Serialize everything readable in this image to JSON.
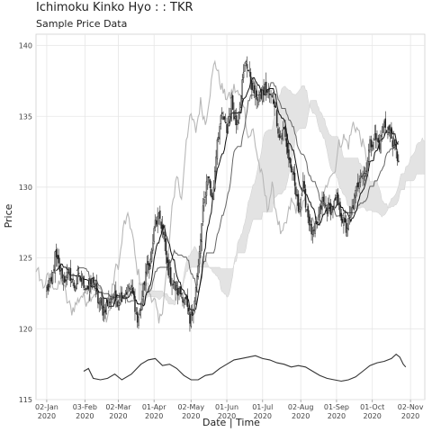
{
  "chart_data": {
    "type": "line",
    "title": "Ichimoku Kinko Hyo : : TKR",
    "subtitle": "Sample Price Data",
    "xlabel": "Date | Time",
    "ylabel": "Price",
    "ylim": [
      115,
      140.8
    ],
    "yticks": [
      115,
      120,
      125,
      130,
      135,
      140
    ],
    "xlim": [
      -8,
      318
    ],
    "xticks": [
      {
        "day": 1,
        "line1": "02-Jan",
        "line2": "2020"
      },
      {
        "day": 33,
        "line1": "03-Feb",
        "line2": "2020"
      },
      {
        "day": 61,
        "line1": "02-Mar",
        "line2": "2020"
      },
      {
        "day": 91,
        "line1": "01-Apr",
        "line2": "2020"
      },
      {
        "day": 122,
        "line1": "02-May",
        "line2": "2020"
      },
      {
        "day": 152,
        "line1": "01-Jun",
        "line2": "2020"
      },
      {
        "day": 182,
        "line1": "01-Jul",
        "line2": "2020"
      },
      {
        "day": 214,
        "line1": "02-Aug",
        "line2": "2020"
      },
      {
        "day": 244,
        "line1": "01-Sep",
        "line2": "2020"
      },
      {
        "day": 274,
        "line1": "01-Oct",
        "line2": "2020"
      },
      {
        "day": 306,
        "line1": "02-Nov",
        "line2": "2020"
      }
    ],
    "grid": true,
    "close_anchors": [
      [
        1,
        122.8
      ],
      [
        5,
        123.2
      ],
      [
        8,
        125.1
      ],
      [
        12,
        124.2
      ],
      [
        16,
        123.5
      ],
      [
        20,
        124.0
      ],
      [
        24,
        123.0
      ],
      [
        28,
        123.6
      ],
      [
        32,
        123.2
      ],
      [
        36,
        122.8
      ],
      [
        40,
        123.5
      ],
      [
        44,
        122.0
      ],
      [
        48,
        121.3
      ],
      [
        52,
        121.8
      ],
      [
        56,
        122.4
      ],
      [
        60,
        122.0
      ],
      [
        63,
        122.3
      ],
      [
        67,
        122.5
      ],
      [
        70,
        123.0
      ],
      [
        74,
        122.2
      ],
      [
        77,
        120.5
      ],
      [
        80,
        121.5
      ],
      [
        84,
        124.0
      ],
      [
        88,
        124.8
      ],
      [
        92,
        127.5
      ],
      [
        96,
        127.8
      ],
      [
        99,
        126.5
      ],
      [
        102,
        124.5
      ],
      [
        105,
        123.5
      ],
      [
        108,
        123.0
      ],
      [
        111,
        122.6
      ],
      [
        114,
        122.5
      ],
      [
        118,
        121.8
      ],
      [
        121,
        120.3
      ],
      [
        124,
        121.5
      ],
      [
        128,
        124.3
      ],
      [
        132,
        128.3
      ],
      [
        136,
        131.0
      ],
      [
        140,
        129.0
      ],
      [
        144,
        133.5
      ],
      [
        148,
        135.0
      ],
      [
        152,
        134.0
      ],
      [
        156,
        136.0
      ],
      [
        160,
        134.5
      ],
      [
        164,
        136.8
      ],
      [
        168,
        139.0
      ],
      [
        172,
        137.5
      ],
      [
        176,
        136.5
      ],
      [
        180,
        136.3
      ],
      [
        184,
        137.0
      ],
      [
        188,
        136.5
      ],
      [
        192,
        136.0
      ],
      [
        196,
        133.5
      ],
      [
        200,
        134.0
      ],
      [
        204,
        132.0
      ],
      [
        208,
        130.5
      ],
      [
        212,
        128.5
      ],
      [
        216,
        130.0
      ],
      [
        220,
        128.0
      ],
      [
        224,
        126.5
      ],
      [
        228,
        127.5
      ],
      [
        232,
        129.0
      ],
      [
        236,
        128.5
      ],
      [
        240,
        128.5
      ],
      [
        244,
        129.0
      ],
      [
        248,
        128.0
      ],
      [
        252,
        127.0
      ],
      [
        256,
        128.0
      ],
      [
        260,
        129.5
      ],
      [
        264,
        131.0
      ],
      [
        268,
        131.0
      ],
      [
        272,
        133.0
      ],
      [
        276,
        133.5
      ],
      [
        280,
        133.0
      ],
      [
        284,
        134.5
      ],
      [
        288,
        134.0
      ],
      [
        292,
        133.0
      ],
      [
        296,
        131.8
      ]
    ],
    "series": [
      {
        "role": "chikou",
        "color": "#b8b8b8",
        "shift": -26
      },
      {
        "role": "tenkan",
        "color": "#111111",
        "period": 9
      },
      {
        "role": "kijun",
        "color": "#666666",
        "period": 26
      },
      {
        "role": "senkou_a",
        "shift": 26
      },
      {
        "role": "senkou_b",
        "period": 52,
        "shift": 26
      },
      {
        "role": "kumo",
        "color": "#e3e3e3"
      },
      {
        "role": "candles",
        "color": "#222222"
      }
    ],
    "lower_line": {
      "color": "#333333",
      "points": [
        [
          32,
          117.0
        ],
        [
          36,
          117.2
        ],
        [
          40,
          116.5
        ],
        [
          46,
          116.4
        ],
        [
          52,
          116.5
        ],
        [
          58,
          116.8
        ],
        [
          64,
          116.4
        ],
        [
          72,
          116.8
        ],
        [
          80,
          117.5
        ],
        [
          86,
          117.8
        ],
        [
          92,
          117.9
        ],
        [
          98,
          117.4
        ],
        [
          104,
          117.5
        ],
        [
          110,
          117.2
        ],
        [
          116,
          116.7
        ],
        [
          122,
          116.4
        ],
        [
          128,
          116.4
        ],
        [
          134,
          116.7
        ],
        [
          140,
          116.8
        ],
        [
          146,
          117.2
        ],
        [
          152,
          117.5
        ],
        [
          158,
          117.8
        ],
        [
          164,
          117.9
        ],
        [
          170,
          118.0
        ],
        [
          176,
          118.1
        ],
        [
          182,
          117.9
        ],
        [
          188,
          117.8
        ],
        [
          194,
          117.6
        ],
        [
          200,
          117.5
        ],
        [
          206,
          117.3
        ],
        [
          212,
          117.4
        ],
        [
          218,
          117.3
        ],
        [
          224,
          117.0
        ],
        [
          230,
          116.7
        ],
        [
          236,
          116.5
        ],
        [
          242,
          116.4
        ],
        [
          248,
          116.3
        ],
        [
          254,
          116.4
        ],
        [
          260,
          116.6
        ],
        [
          266,
          117.0
        ],
        [
          272,
          117.4
        ],
        [
          278,
          117.6
        ],
        [
          284,
          117.7
        ],
        [
          290,
          117.9
        ],
        [
          294,
          118.2
        ],
        [
          297,
          118.0
        ],
        [
          300,
          117.5
        ],
        [
          302,
          117.3
        ]
      ]
    }
  }
}
